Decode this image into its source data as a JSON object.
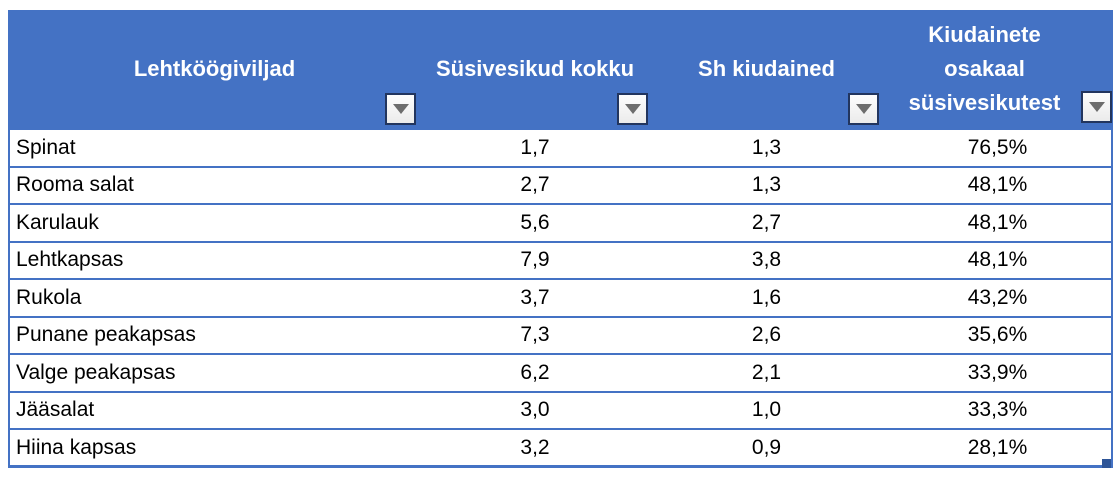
{
  "colors": {
    "header_background": "#4472C4",
    "header_text": "#FFFFFF",
    "row_border": "#4472C4",
    "cell_text": "#000000",
    "filter_button_border": "#22355E",
    "filter_arrow": "#6D6D6D",
    "resize_handle": "#2E5597"
  },
  "table": {
    "columns": [
      {
        "label": "Lehtköögiviljad"
      },
      {
        "label": "Süsivesikud kokku"
      },
      {
        "label": "Sh kiudained"
      },
      {
        "label": "Kiudainete osakaal süsivesikutest",
        "lines": [
          "Kiudainete",
          "osakaal",
          "süsivesikutest"
        ]
      }
    ],
    "rows": [
      {
        "name": "Spinat",
        "carbs_total": "1,7",
        "fiber": "1,3",
        "fiber_share": "76,5%"
      },
      {
        "name": "Rooma salat",
        "carbs_total": "2,7",
        "fiber": "1,3",
        "fiber_share": "48,1%"
      },
      {
        "name": "Karulauk",
        "carbs_total": "5,6",
        "fiber": "2,7",
        "fiber_share": "48,1%"
      },
      {
        "name": "Lehtkapsas",
        "carbs_total": "7,9",
        "fiber": "3,8",
        "fiber_share": "48,1%"
      },
      {
        "name": "Rukola",
        "carbs_total": "3,7",
        "fiber": "1,6",
        "fiber_share": "43,2%"
      },
      {
        "name": "Punane peakapsas",
        "carbs_total": "7,3",
        "fiber": "2,6",
        "fiber_share": "35,6%"
      },
      {
        "name": "Valge peakapsas",
        "carbs_total": "6,2",
        "fiber": "2,1",
        "fiber_share": "33,9%"
      },
      {
        "name": "Jääsalat",
        "carbs_total": "3,0",
        "fiber": "1,0",
        "fiber_share": "33,3%"
      },
      {
        "name": "Hiina kapsas",
        "carbs_total": "3,2",
        "fiber": "0,9",
        "fiber_share": "28,1%"
      }
    ]
  }
}
